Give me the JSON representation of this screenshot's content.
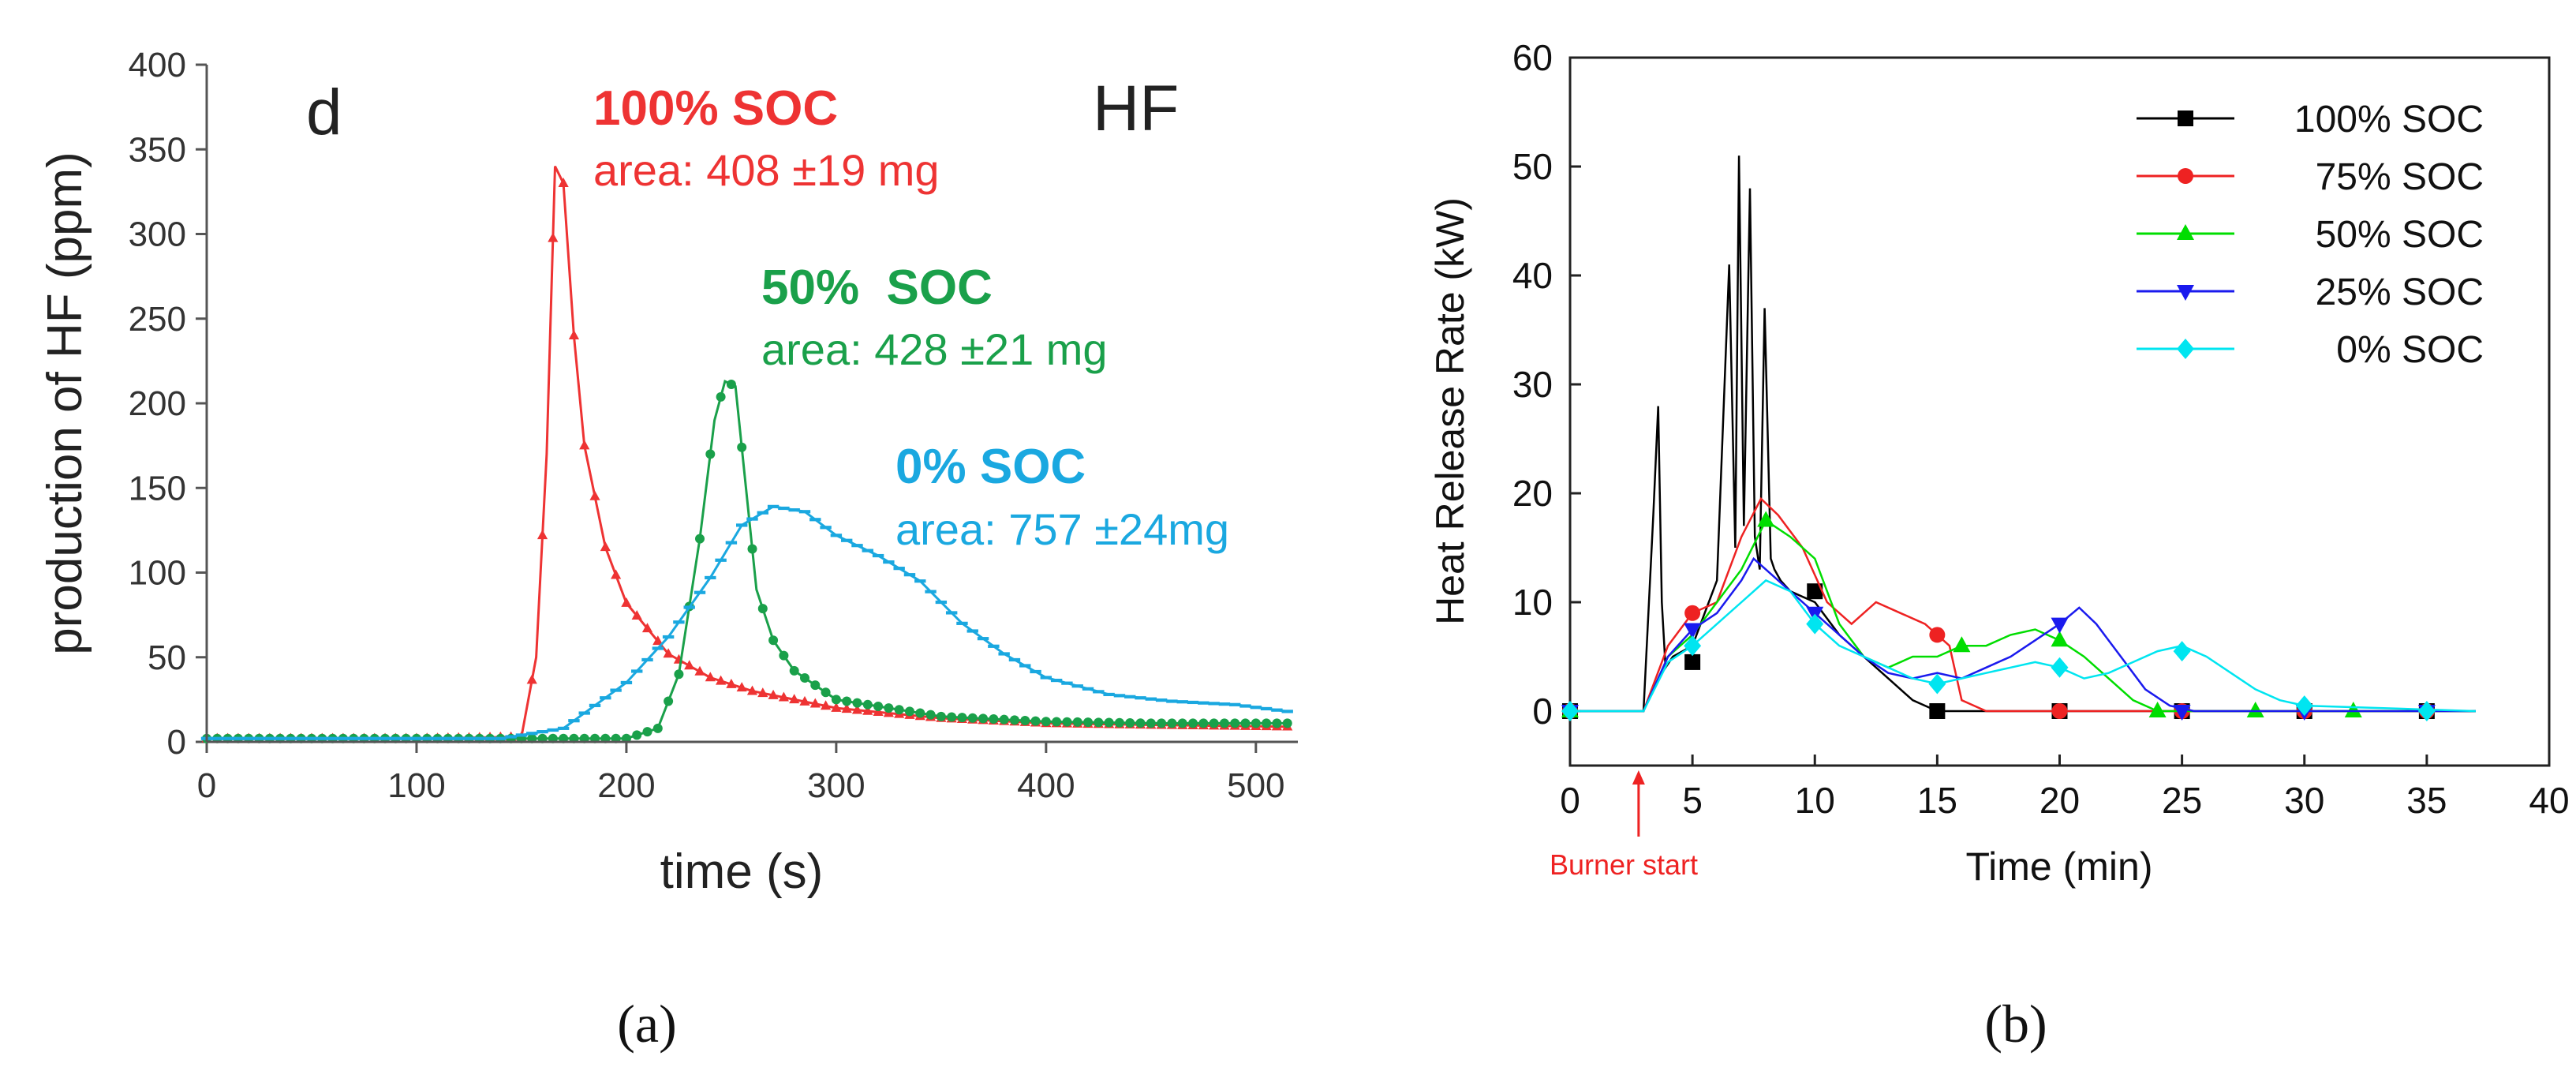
{
  "chart_data": [
    {
      "panel_label": "a",
      "type": "line",
      "title": "HF",
      "corner_label": "d",
      "xlabel": "time (s)",
      "ylabel": "production of HF (ppm)",
      "xlim": [
        0,
        520
      ],
      "ylim": [
        0,
        400
      ],
      "xticks": [
        0,
        100,
        200,
        300,
        400,
        500
      ],
      "yticks": [
        0,
        50,
        100,
        150,
        200,
        250,
        300,
        350,
        400
      ],
      "annotations": [
        {
          "title": "100% SOC",
          "text": "area: 408 ±19 mg",
          "color": "#ee3333"
        },
        {
          "title": "50%  SOC",
          "text": "area: 428 ±21 mg",
          "color": "#1aa04a"
        },
        {
          "title": "0% SOC",
          "text": "area: 757 ±24mg",
          "color": "#1aa8e0"
        }
      ],
      "series": [
        {
          "name": "100% SOC",
          "color": "#ee3333",
          "marker": "triangle",
          "x": [
            0,
            100,
            150,
            157,
            162,
            166,
            170,
            175,
            180,
            190,
            200,
            220,
            240,
            260,
            300,
            350,
            400,
            450,
            515
          ],
          "y": [
            2,
            2,
            3,
            50,
            170,
            340,
            330,
            240,
            175,
            115,
            82,
            52,
            38,
            30,
            20,
            14,
            11,
            10,
            9
          ]
        },
        {
          "name": "50% SOC",
          "color": "#1aa04a",
          "marker": "circle",
          "x": [
            0,
            200,
            215,
            225,
            235,
            242,
            247,
            252,
            257,
            262,
            270,
            280,
            300,
            350,
            400,
            450,
            515
          ],
          "y": [
            2,
            2,
            8,
            40,
            120,
            190,
            213,
            210,
            150,
            90,
            60,
            42,
            25,
            15,
            12,
            11,
            11
          ]
        },
        {
          "name": "0% SOC",
          "color": "#1aa8e0",
          "marker": "dash",
          "x": [
            0,
            140,
            170,
            200,
            220,
            240,
            255,
            270,
            285,
            300,
            320,
            340,
            360,
            380,
            400,
            430,
            460,
            490,
            515
          ],
          "y": [
            2,
            2,
            8,
            35,
            62,
            97,
            128,
            139,
            136,
            122,
            110,
            95,
            70,
            52,
            38,
            28,
            24,
            22,
            18
          ]
        }
      ]
    },
    {
      "panel_label": "b",
      "type": "line",
      "xlabel": "Time (min)",
      "ylabel": "Heat Release Rate (kW)",
      "xlim": [
        0,
        40
      ],
      "ylim": [
        -5,
        60
      ],
      "xticks": [
        0,
        5,
        10,
        15,
        20,
        25,
        30,
        35,
        40
      ],
      "yticks": [
        0,
        10,
        20,
        30,
        40,
        50,
        60
      ],
      "arrow_annotation": {
        "text": "Burner start",
        "x": 2.8,
        "color": "#ee2222"
      },
      "legend_position": "top-right",
      "series": [
        {
          "name": "100% SOC",
          "color": "#000000",
          "marker": "square",
          "x": [
            0,
            3.0,
            3.4,
            3.6,
            3.75,
            3.9,
            4.2,
            5.0,
            6.0,
            6.5,
            6.75,
            6.9,
            7.1,
            7.35,
            7.55,
            7.75,
            7.95,
            8.2,
            8.35,
            8.6,
            9.0,
            10.0,
            11.0,
            12.0,
            13.0,
            14.0,
            15.0,
            16.0,
            37.0
          ],
          "y": [
            0,
            0,
            18,
            28,
            10,
            4,
            5,
            6,
            12,
            41,
            15,
            51,
            17,
            48,
            16,
            13,
            37,
            14,
            13,
            12,
            11,
            10,
            7,
            5,
            3,
            1,
            0,
            0,
            0
          ],
          "marker_x": [
            0,
            5,
            10,
            15,
            20,
            25,
            30,
            35
          ],
          "marker_y": [
            0,
            4.5,
            11,
            0,
            0,
            0,
            0,
            0
          ]
        },
        {
          "name": "75% SOC",
          "color": "#ee2222",
          "marker": "circle",
          "x": [
            0,
            3.0,
            4.0,
            5.0,
            6.0,
            7.0,
            7.8,
            8.5,
            9.5,
            10.5,
            11.5,
            12.5,
            13.5,
            14.5,
            15.5,
            16.0,
            17.0,
            37.0
          ],
          "y": [
            0,
            0,
            6,
            9,
            10,
            16,
            19.5,
            18,
            15,
            10,
            8,
            10,
            9,
            8,
            6,
            1,
            0,
            0
          ],
          "marker_x": [
            0,
            5,
            15,
            20,
            25,
            30,
            35
          ],
          "marker_y": [
            0,
            9,
            7,
            0,
            0,
            0,
            0
          ]
        },
        {
          "name": "50% SOC",
          "color": "#00dd00",
          "marker": "triangle-up",
          "x": [
            0,
            3.0,
            4.0,
            5.0,
            6.0,
            7.0,
            8.0,
            9.0,
            10.0,
            11.0,
            12.0,
            13.0,
            14.0,
            15.0,
            16.0,
            17.0,
            18.0,
            19.0,
            20.0,
            21.0,
            22.0,
            23.0,
            24.0,
            25.0,
            37.0
          ],
          "y": [
            0,
            0,
            5,
            7,
            10,
            13,
            17.5,
            16,
            14,
            8,
            5,
            4,
            5,
            5,
            6,
            6,
            7,
            7.5,
            6.5,
            5,
            3,
            1,
            0,
            0,
            0
          ],
          "marker_x": [
            0,
            8,
            16,
            20,
            24,
            28,
            32
          ],
          "marker_y": [
            0,
            17.5,
            6,
            6.5,
            0,
            0,
            0
          ]
        },
        {
          "name": "25% SOC",
          "color": "#1a1aee",
          "marker": "triangle-down",
          "x": [
            0,
            3.0,
            4.0,
            5.0,
            6.0,
            7.0,
            7.5,
            8.0,
            9.0,
            10.0,
            11.0,
            12.0,
            13.0,
            14.0,
            15.0,
            16.0,
            17.0,
            18.0,
            19.0,
            20.0,
            20.8,
            21.5,
            22.5,
            23.5,
            24.5,
            25.5,
            37.0
          ],
          "y": [
            0,
            0,
            5,
            7.5,
            9,
            12,
            14,
            13,
            11,
            9,
            7,
            5,
            3.5,
            3,
            3.5,
            3,
            4,
            5,
            6.5,
            8,
            9.5,
            8,
            5,
            2,
            0.5,
            0,
            0
          ],
          "marker_x": [
            0,
            5,
            10,
            20,
            25,
            30,
            35
          ],
          "marker_y": [
            0,
            7.5,
            9,
            8,
            0,
            0,
            0
          ]
        },
        {
          "name": "0% SOC",
          "color": "#00e5f0",
          "marker": "diamond",
          "x": [
            0,
            3.0,
            4.0,
            5.0,
            6.0,
            7.0,
            8.0,
            9.0,
            10.0,
            11.0,
            12.0,
            13.0,
            14.0,
            15.0,
            16.0,
            17.0,
            18.0,
            19.0,
            20.0,
            21.0,
            22.0,
            23.0,
            24.0,
            25.0,
            26.0,
            27.0,
            28.0,
            29.0,
            30.0,
            37.0
          ],
          "y": [
            0,
            0,
            4.5,
            6,
            8,
            10,
            12,
            11,
            8,
            6,
            5,
            4,
            3,
            2.5,
            3,
            3.5,
            4,
            4.5,
            4,
            3,
            3.5,
            4.5,
            5.5,
            6,
            5,
            3.5,
            2,
            1,
            0.5,
            0
          ],
          "marker_x": [
            0,
            5,
            10,
            15,
            20,
            25,
            30,
            35
          ],
          "marker_y": [
            0,
            6,
            8,
            2.5,
            4,
            5.5,
            0.5,
            0
          ]
        }
      ]
    }
  ],
  "captions": [
    "(a)",
    "(b)"
  ]
}
